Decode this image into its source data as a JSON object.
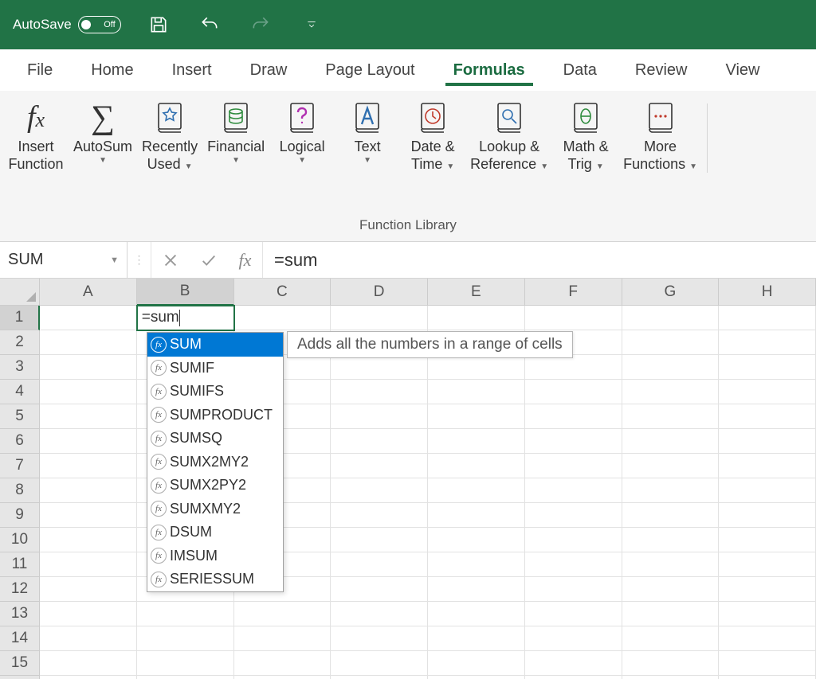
{
  "colors": {
    "brand": "#217346",
    "selection": "#0078d4",
    "ribbon_bg": "#f5f5f5",
    "header_bg": "#e6e6e6",
    "grid_border": "#e2e2e2"
  },
  "titlebar": {
    "autosave_label": "AutoSave",
    "autosave_state": "Off"
  },
  "tabs": {
    "items": [
      "File",
      "Home",
      "Insert",
      "Draw",
      "Page Layout",
      "Formulas",
      "Data",
      "Review",
      "View"
    ],
    "active_index": 5
  },
  "ribbon": {
    "group_label": "Function Library",
    "buttons": [
      {
        "label_line1": "Insert",
        "label_line2": "Function",
        "has_caret": false,
        "icon": "fx"
      },
      {
        "label_line1": "AutoSum",
        "label_line2": "",
        "has_caret": true,
        "icon": "sigma"
      },
      {
        "label_line1": "Recently",
        "label_line2": "Used",
        "has_caret": true,
        "icon": "star-book"
      },
      {
        "label_line1": "Financial",
        "label_line2": "",
        "has_caret": true,
        "icon": "coins-book"
      },
      {
        "label_line1": "Logical",
        "label_line2": "",
        "has_caret": true,
        "icon": "question-book"
      },
      {
        "label_line1": "Text",
        "label_line2": "",
        "has_caret": true,
        "icon": "a-book"
      },
      {
        "label_line1": "Date &",
        "label_line2": "Time",
        "has_caret": true,
        "icon": "clock-book"
      },
      {
        "label_line1": "Lookup &",
        "label_line2": "Reference",
        "has_caret": true,
        "icon": "search-book"
      },
      {
        "label_line1": "Math &",
        "label_line2": "Trig",
        "has_caret": true,
        "icon": "theta-book"
      },
      {
        "label_line1": "More",
        "label_line2": "Functions",
        "has_caret": true,
        "icon": "dots-book"
      }
    ]
  },
  "formula_bar": {
    "namebox": "SUM",
    "fx_label": "fx",
    "value": "=sum"
  },
  "grid": {
    "columns": [
      "A",
      "B",
      "C",
      "D",
      "E",
      "F",
      "G",
      "H"
    ],
    "row_count": 16,
    "active_cell": {
      "row": 1,
      "col": "B",
      "value": "=sum"
    }
  },
  "autocomplete": {
    "selected_index": 0,
    "tooltip": "Adds all the numbers in a range of cells",
    "items": [
      "SUM",
      "SUMIF",
      "SUMIFS",
      "SUMPRODUCT",
      "SUMSQ",
      "SUMX2MY2",
      "SUMX2PY2",
      "SUMXMY2",
      "DSUM",
      "IMSUM",
      "SERIESSUM"
    ]
  }
}
